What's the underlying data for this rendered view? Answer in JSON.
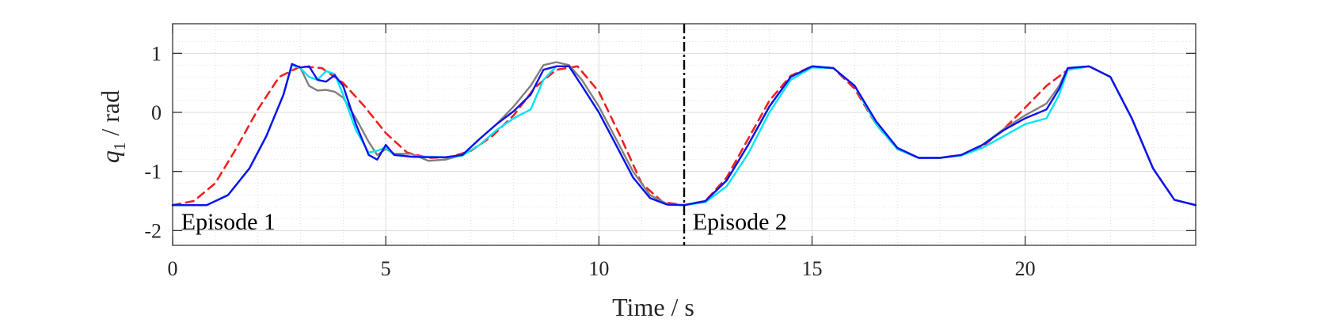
{
  "chart_data": {
    "type": "line",
    "xlabel": "Time / s",
    "ylabel_symbol": "q",
    "ylabel_subscript": "1",
    "ylabel_unit": " / rad",
    "xlim": [
      0,
      24
    ],
    "ylim": [
      -2.25,
      1.5
    ],
    "xticks": [
      0,
      5,
      10,
      15,
      20
    ],
    "xtick_labels": [
      "0",
      "5",
      "10",
      "15",
      "20"
    ],
    "yticks": [
      1,
      0,
      -1,
      -2
    ],
    "ytick_labels": [
      "1",
      "0",
      "-1",
      "-2"
    ],
    "grid": true,
    "minor_grid": true,
    "legend": "none",
    "annotations": [
      {
        "text": "Episode 1",
        "x": 0.2,
        "y": -1.85
      },
      {
        "text": "Episode 2",
        "x": 12.2,
        "y": -1.85
      }
    ],
    "vline": {
      "x": 12,
      "style": "dash-dot",
      "color": "#000000"
    },
    "series": [
      {
        "color": "#ee2222",
        "dash": "10,7",
        "x": [
          0,
          0.5,
          1,
          1.5,
          2,
          2.5,
          3,
          3.5,
          4,
          4.5,
          5,
          5.5,
          6,
          6.5,
          7,
          7.5,
          8,
          8.5,
          9,
          9.5,
          10,
          10.5,
          11,
          11.5,
          12,
          12.5,
          13,
          13.5,
          14,
          14.5,
          15,
          15.5,
          16,
          16.5,
          17,
          17.5,
          18,
          18.5,
          19,
          19.5,
          20,
          20.5,
          21,
          21.5,
          22,
          22.5,
          23,
          23.5,
          24
        ],
        "y": [
          -1.57,
          -1.5,
          -1.2,
          -0.6,
          0.05,
          0.6,
          0.78,
          0.75,
          0.5,
          0.1,
          -0.35,
          -0.68,
          -0.77,
          -0.76,
          -0.65,
          -0.4,
          -0.05,
          0.42,
          0.72,
          0.78,
          0.35,
          -0.4,
          -1.2,
          -1.52,
          -1.57,
          -1.5,
          -1.1,
          -0.45,
          0.2,
          0.62,
          0.78,
          0.75,
          0.4,
          -0.2,
          -0.62,
          -0.77,
          -0.77,
          -0.72,
          -0.58,
          -0.28,
          0.08,
          0.45,
          0.72,
          0.78,
          0.6,
          -0.1,
          -0.95,
          -1.48,
          -1.57
        ]
      },
      {
        "color": "#808080",
        "dash": "",
        "x": [
          0,
          0.8,
          1.3,
          1.8,
          2.2,
          2.6,
          2.8,
          3.0,
          3.2,
          3.4,
          3.6,
          3.8,
          4.0,
          4.3,
          4.6,
          4.8,
          5.0,
          5.2,
          5.6,
          6.0,
          6.4,
          6.8,
          7.2,
          7.6,
          8.0,
          8.4,
          8.7,
          9.0,
          9.3,
          9.6,
          10.0,
          10.4,
          10.8,
          11.2,
          11.6,
          12,
          12.5,
          13,
          13.5,
          14,
          14.5,
          15,
          15.5,
          16,
          16.5,
          17,
          17.5,
          18,
          18.5,
          19,
          19.5,
          20,
          20.5,
          20.8,
          21,
          21.5,
          22,
          22.5,
          23,
          23.5,
          24
        ],
        "y": [
          -1.57,
          -1.57,
          -1.4,
          -0.95,
          -0.4,
          0.3,
          0.8,
          0.75,
          0.45,
          0.37,
          0.38,
          0.35,
          0.25,
          -0.1,
          -0.5,
          -0.72,
          -0.62,
          -0.7,
          -0.7,
          -0.82,
          -0.8,
          -0.72,
          -0.45,
          -0.2,
          0.1,
          0.45,
          0.8,
          0.85,
          0.8,
          0.55,
          0.1,
          -0.45,
          -1.0,
          -1.4,
          -1.55,
          -1.57,
          -1.5,
          -1.15,
          -0.55,
          0.1,
          0.6,
          0.78,
          0.75,
          0.45,
          -0.15,
          -0.6,
          -0.77,
          -0.77,
          -0.72,
          -0.55,
          -0.28,
          -0.05,
          0.15,
          0.45,
          0.75,
          0.78,
          0.6,
          -0.1,
          -0.95,
          -1.48,
          -1.57
        ]
      },
      {
        "color": "#00e5ee",
        "dash": "",
        "x": [
          0,
          0.8,
          1.3,
          1.8,
          2.2,
          2.6,
          2.8,
          3.0,
          3.2,
          3.4,
          3.6,
          3.8,
          4.0,
          4.3,
          4.6,
          4.8,
          5.0,
          5.2,
          5.6,
          6.0,
          6.4,
          6.8,
          7.2,
          7.6,
          8.0,
          8.4,
          8.7,
          9.0,
          9.3,
          9.6,
          10.0,
          10.4,
          10.8,
          11.2,
          11.6,
          12,
          12.5,
          13,
          13.5,
          14,
          14.5,
          15,
          15.5,
          16,
          16.5,
          17,
          17.5,
          18,
          18.5,
          19,
          19.5,
          20,
          20.5,
          20.8,
          21,
          21.5,
          22,
          22.5,
          23,
          23.5,
          24
        ],
        "y": [
          -1.57,
          -1.57,
          -1.4,
          -0.95,
          -0.4,
          0.3,
          0.8,
          0.75,
          0.6,
          0.55,
          0.7,
          0.65,
          0.3,
          -0.3,
          -0.68,
          -0.65,
          -0.6,
          -0.72,
          -0.75,
          -0.75,
          -0.76,
          -0.73,
          -0.55,
          -0.3,
          -0.1,
          0.05,
          0.55,
          0.78,
          0.78,
          0.45,
          0.0,
          -0.55,
          -1.1,
          -1.45,
          -1.56,
          -1.57,
          -1.52,
          -1.25,
          -0.7,
          0.0,
          0.55,
          0.76,
          0.75,
          0.45,
          -0.2,
          -0.62,
          -0.77,
          -0.77,
          -0.73,
          -0.6,
          -0.4,
          -0.2,
          -0.1,
          0.3,
          0.72,
          0.78,
          0.6,
          -0.1,
          -0.95,
          -1.48,
          -1.57
        ]
      },
      {
        "color": "#1010ee",
        "dash": "",
        "x": [
          0,
          0.8,
          1.3,
          1.8,
          2.2,
          2.6,
          2.8,
          3.0,
          3.2,
          3.4,
          3.6,
          3.8,
          4.0,
          4.3,
          4.6,
          4.8,
          5.0,
          5.2,
          5.6,
          6.0,
          6.4,
          6.8,
          7.2,
          7.6,
          8.0,
          8.4,
          8.7,
          9.0,
          9.3,
          9.6,
          10.0,
          10.4,
          10.8,
          11.2,
          11.6,
          12,
          12.5,
          13,
          13.5,
          14,
          14.5,
          15,
          15.5,
          16,
          16.5,
          17,
          17.5,
          18,
          18.5,
          19,
          19.5,
          20,
          20.5,
          20.8,
          21,
          21.5,
          22,
          22.5,
          23,
          23.5,
          24
        ],
        "y": [
          -1.57,
          -1.57,
          -1.4,
          -0.95,
          -0.4,
          0.3,
          0.82,
          0.76,
          0.78,
          0.55,
          0.52,
          0.63,
          0.45,
          -0.2,
          -0.72,
          -0.8,
          -0.55,
          -0.72,
          -0.75,
          -0.76,
          -0.76,
          -0.72,
          -0.45,
          -0.2,
          0.02,
          0.3,
          0.72,
          0.78,
          0.78,
          0.45,
          0.0,
          -0.55,
          -1.1,
          -1.45,
          -1.56,
          -1.57,
          -1.5,
          -1.15,
          -0.55,
          0.1,
          0.6,
          0.78,
          0.75,
          0.45,
          -0.15,
          -0.6,
          -0.77,
          -0.77,
          -0.72,
          -0.55,
          -0.3,
          -0.1,
          0.05,
          0.4,
          0.75,
          0.78,
          0.6,
          -0.1,
          -0.95,
          -1.48,
          -1.57
        ]
      }
    ]
  }
}
